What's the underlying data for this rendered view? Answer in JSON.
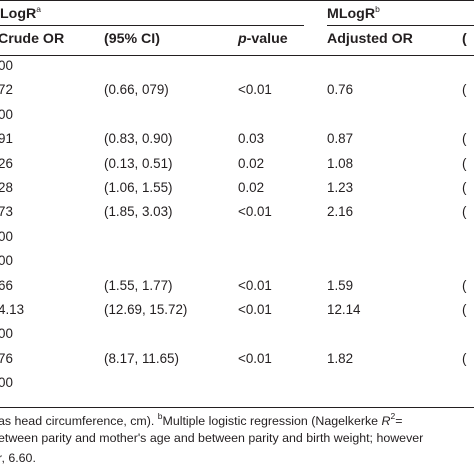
{
  "group_headers": {
    "ulogr": "LogR",
    "ulogr_sup": "a",
    "mlogr": "MLogR",
    "mlogr_sup": "b"
  },
  "columns": {
    "crude_or": "Crude OR",
    "ci1": "(95% CI)",
    "p_italic": "p",
    "p_rest": "-value",
    "adjusted_or": "Adjusted OR",
    "ci2_fragment": "("
  },
  "rows": [
    {
      "crude": "00",
      "ci": "",
      "p": "",
      "adj": "",
      "ci2": ""
    },
    {
      "crude": "72",
      "ci": "(0.66, 079)",
      "p": "<0.01",
      "adj": "0.76",
      "ci2": "("
    },
    {
      "crude": "00",
      "ci": "",
      "p": "",
      "adj": "",
      "ci2": ""
    },
    {
      "crude": "91",
      "ci": "(0.83, 0.90)",
      "p": "0.03",
      "adj": "0.87",
      "ci2": "("
    },
    {
      "crude": "26",
      "ci": "(0.13, 0.51)",
      "p": "0.02",
      "adj": "1.08",
      "ci2": "("
    },
    {
      "crude": "28",
      "ci": "(1.06, 1.55)",
      "p": "0.02",
      "adj": "1.23",
      "ci2": "("
    },
    {
      "crude": "73",
      "ci": "(1.85, 3.03)",
      "p": "<0.01",
      "adj": "2.16",
      "ci2": "("
    },
    {
      "crude": "00",
      "ci": "",
      "p": "",
      "adj": "",
      "ci2": ""
    },
    {
      "crude": "00",
      "ci": "",
      "p": "",
      "adj": "",
      "ci2": ""
    },
    {
      "crude": "66",
      "ci": "(1.55, 1.77)",
      "p": "<0.01",
      "adj": "1.59",
      "ci2": "("
    },
    {
      "crude": "4.13",
      "ci": "(12.69, 15.72)",
      "p": "<0.01",
      "adj": "12.14",
      "ci2": "("
    },
    {
      "crude": "00",
      "ci": "",
      "p": "",
      "adj": "",
      "ci2": ""
    },
    {
      "crude": "76",
      "ci": "(8.17, 11.65)",
      "p": "<0.01",
      "adj": "1.82",
      "ci2": "("
    },
    {
      "crude": "00",
      "ci": "",
      "p": "",
      "adj": "",
      "ci2": ""
    }
  ],
  "footnote": {
    "line1_a": "as head circumference, cm). ",
    "line1_sup": "b",
    "line1_b": "Multiple logistic regression (Nagelkerke ",
    "line1_r": "R",
    "line1_r_sup": "2",
    "line1_c": "=",
    "line2": "etween parity and mother's age and between parity and birth weight; however",
    "line3": "r, 6.60."
  }
}
